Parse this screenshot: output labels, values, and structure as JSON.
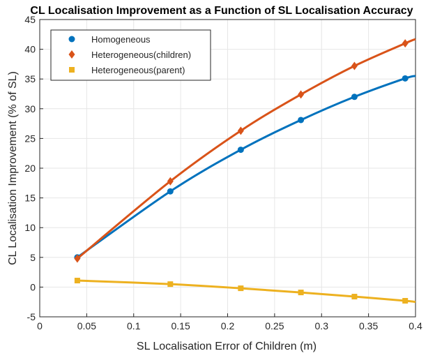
{
  "chart_data": {
    "type": "line",
    "title": "CL Localisation Improvement as a Function of SL Localisation Accuracy",
    "xlabel": "SL Localisation Error of Children (m)",
    "ylabel": "CL Localisation Improvement (% of SL)",
    "xlim": [
      0,
      0.4
    ],
    "ylim": [
      -5,
      45
    ],
    "xticks": [
      0,
      0.05,
      0.1,
      0.15,
      0.2,
      0.25,
      0.3,
      0.35,
      0.4
    ],
    "xtick_labels": [
      "0",
      "0.05",
      "0.1",
      "0.15",
      "0.2",
      "0.25",
      "0.3",
      "0.35",
      "0.4"
    ],
    "yticks": [
      -5,
      0,
      5,
      10,
      15,
      20,
      25,
      30,
      35,
      40,
      45
    ],
    "ytick_labels": [
      "-5",
      "0",
      "5",
      "10",
      "15",
      "20",
      "25",
      "30",
      "35",
      "40",
      "45"
    ],
    "grid": true,
    "legend_position": "top-left",
    "series": [
      {
        "name": "Homogeneous",
        "color": "#0072BD",
        "marker": "circle",
        "x": [
          0.04,
          0.139,
          0.214,
          0.278,
          0.335,
          0.389
        ],
        "y": [
          5.0,
          16.1,
          23.1,
          28.1,
          32.0,
          35.1
        ],
        "fit_end": [
          0.4,
          35.5
        ]
      },
      {
        "name": "Heterogeneous(children)",
        "color": "#D95319",
        "marker": "diamond",
        "x": [
          0.04,
          0.139,
          0.214,
          0.278,
          0.335,
          0.389
        ],
        "y": [
          4.8,
          17.8,
          26.3,
          32.4,
          37.2,
          41.0
        ],
        "fit_end": [
          0.4,
          41.7
        ]
      },
      {
        "name": "Heterogeneous(parent)",
        "color": "#EDB120",
        "marker": "square",
        "x": [
          0.04,
          0.139,
          0.214,
          0.278,
          0.335,
          0.389
        ],
        "y": [
          1.1,
          0.5,
          -0.2,
          -0.9,
          -1.6,
          -2.3
        ],
        "fit_end": [
          0.4,
          -2.5
        ]
      }
    ]
  }
}
